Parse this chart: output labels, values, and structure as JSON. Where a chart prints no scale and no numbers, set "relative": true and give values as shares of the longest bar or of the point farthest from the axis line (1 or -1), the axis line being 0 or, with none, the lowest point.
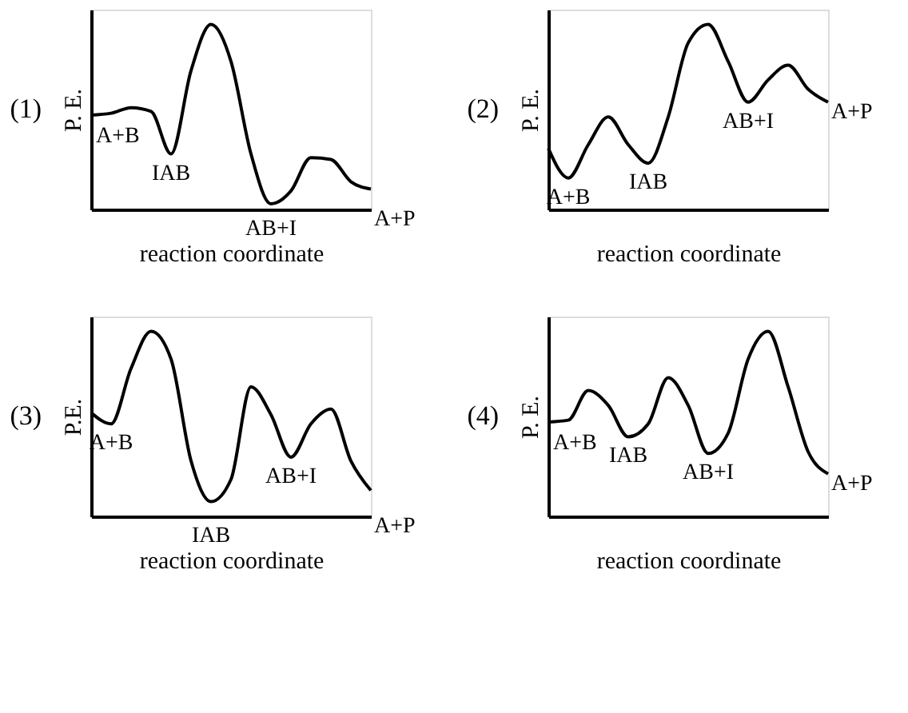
{
  "chart_data": [
    {
      "type": "line",
      "title": "(1)",
      "xlabel": "reaction coordinate",
      "ylabel": "P. E.",
      "relative": true,
      "tick_labels": false,
      "color": "#000000",
      "categories": [
        null,
        null,
        null,
        null,
        null,
        null,
        null,
        null,
        null,
        null,
        null,
        null,
        null,
        null,
        null
      ],
      "values": [
        0.51,
        0.52,
        0.55,
        0.53,
        0.3,
        0.75,
        1.0,
        0.8,
        0.3,
        0.03,
        0.1,
        0.28,
        0.27,
        0.15,
        0.11
      ],
      "annotations": [
        "A+B",
        "IAB",
        "AB+I",
        "A+P"
      ]
    },
    {
      "type": "line",
      "title": "(2)",
      "xlabel": "reaction coordinate",
      "ylabel": "P. E.",
      "relative": true,
      "tick_labels": false,
      "color": "#000000",
      "categories": [
        null,
        null,
        null,
        null,
        null,
        null,
        null,
        null,
        null,
        null,
        null,
        null,
        null,
        null,
        null
      ],
      "values": [
        0.33,
        0.17,
        0.35,
        0.5,
        0.35,
        0.25,
        0.5,
        0.9,
        1.0,
        0.8,
        0.58,
        0.7,
        0.78,
        0.65,
        0.58
      ],
      "annotations": [
        "A+B",
        "IAB",
        "AB+I",
        "A+P"
      ]
    },
    {
      "type": "line",
      "title": "(3)",
      "xlabel": "reaction coordinate",
      "ylabel": "P.E.",
      "relative": true,
      "tick_labels": false,
      "color": "#000000",
      "categories": [
        null,
        null,
        null,
        null,
        null,
        null,
        null,
        null,
        null,
        null,
        null,
        null,
        null,
        null,
        null
      ],
      "values": [
        0.56,
        0.5,
        0.8,
        1.0,
        0.85,
        0.3,
        0.08,
        0.2,
        0.7,
        0.55,
        0.32,
        0.5,
        0.58,
        0.3,
        0.14
      ],
      "annotations": [
        "A+B",
        "IAB",
        "AB+I",
        "A+P"
      ]
    },
    {
      "type": "line",
      "title": "(4)",
      "xlabel": "reaction coordinate",
      "ylabel": "P. E.",
      "relative": true,
      "tick_labels": false,
      "color": "#000000",
      "categories": [
        null,
        null,
        null,
        null,
        null,
        null,
        null,
        null,
        null,
        null,
        null,
        null,
        null,
        null,
        null
      ],
      "values": [
        0.51,
        0.52,
        0.68,
        0.6,
        0.43,
        0.5,
        0.75,
        0.6,
        0.34,
        0.45,
        0.85,
        1.0,
        0.7,
        0.35,
        0.23
      ],
      "annotations": [
        "A+B",
        "IAB",
        "AB+I",
        "A+P"
      ]
    }
  ]
}
